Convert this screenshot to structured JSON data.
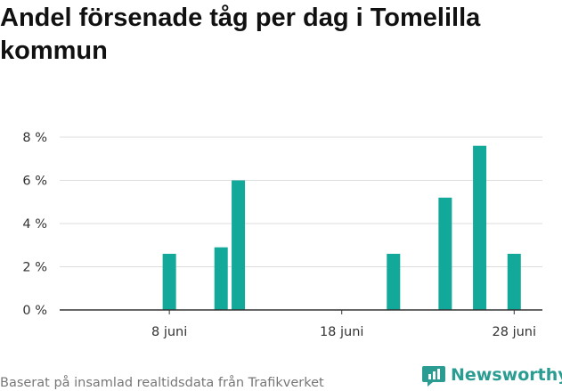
{
  "title": "Andel försenade tåg per dag i Tomelilla kommun",
  "footer": "Baserat på insamlad realtidsdata från Trafikverket",
  "brand": "Newsworthy",
  "colors": {
    "bar": "#12a89a",
    "brand": "#2b9c91",
    "grid": "#dddddd",
    "axis": "#333333"
  },
  "chart_data": {
    "type": "bar",
    "x_start": "2 juni",
    "x_end": "30 juni",
    "x_ticks": [
      {
        "day": 8,
        "label": "8 juni"
      },
      {
        "day": 18,
        "label": "18 juni"
      },
      {
        "day": 28,
        "label": "28 juni"
      }
    ],
    "y_ticks": [
      {
        "value": 0,
        "label": "0 %"
      },
      {
        "value": 2,
        "label": "2 %"
      },
      {
        "value": 4,
        "label": "4 %"
      },
      {
        "value": 6,
        "label": "6 %"
      },
      {
        "value": 8,
        "label": "8 %"
      }
    ],
    "ylim": [
      0,
      8.5
    ],
    "unit": "%",
    "grid": true,
    "bars": [
      {
        "day": 8,
        "value": 2.6
      },
      {
        "day": 11,
        "value": 2.9
      },
      {
        "day": 12,
        "value": 6.0
      },
      {
        "day": 21,
        "value": 2.6
      },
      {
        "day": 24,
        "value": 5.2
      },
      {
        "day": 26,
        "value": 7.6
      },
      {
        "day": 28,
        "value": 2.6
      }
    ]
  }
}
